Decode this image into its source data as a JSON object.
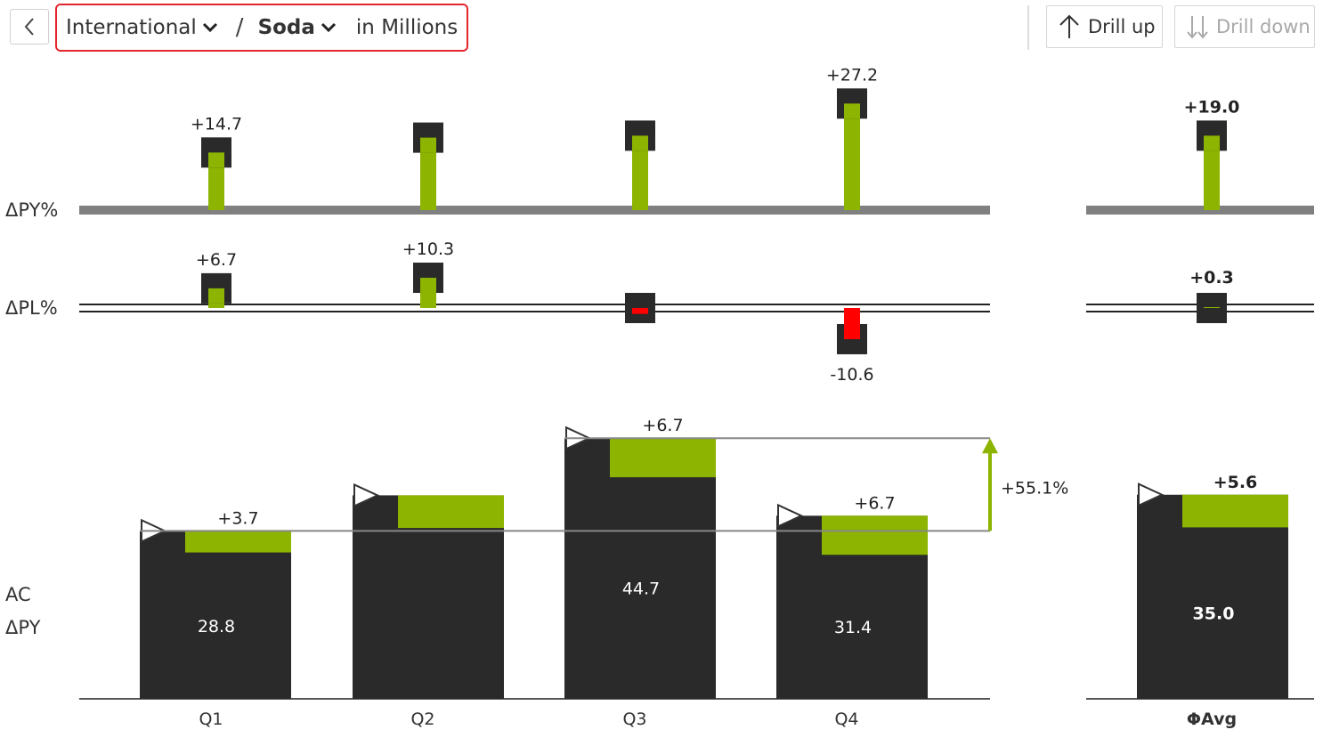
{
  "toolbar": {
    "breadcrumb_level1": "International",
    "breadcrumb_separator": "/",
    "breadcrumb_level2": "Soda",
    "unit": "in Millions",
    "drill_up": "Drill up",
    "drill_down": "Drill down",
    "icons": [
      "back-chevron-icon",
      "chevron-down-icon",
      "arrow-up-icon",
      "drill-down-arrows-icon"
    ]
  },
  "colors": {
    "actual": "#2a2a2a",
    "positive": "#8cb400",
    "negative": "#ff0000",
    "axis": "#808080",
    "highlight_border": "#e4262c"
  },
  "chart_data": {
    "type": "bar",
    "categories": [
      "Q1",
      "Q2",
      "Q3",
      "Q4"
    ],
    "total_label": "ΦAvg",
    "row_labels": {
      "dpy_pct": "ΔPY%",
      "dpl_pct": "ΔPL%",
      "ac": "AC",
      "dpy": "ΔPY"
    },
    "series": [
      {
        "name": "ΔPY%",
        "values": [
          14.7,
          18.5,
          19.0,
          27.2
        ],
        "labels": [
          "+14.7",
          "",
          "",
          "+27.2"
        ],
        "total": 19.0,
        "total_label": "+19.0"
      },
      {
        "name": "ΔPL%",
        "values": [
          6.7,
          10.3,
          -2.0,
          -10.6
        ],
        "labels": [
          "+6.7",
          "+10.3",
          "",
          "-10.6"
        ],
        "total": 0.3,
        "total_label": "+0.3"
      },
      {
        "name": "AC",
        "values": [
          28.8,
          34.9,
          44.7,
          31.4
        ],
        "labels": [
          "28.8",
          "",
          "44.7",
          "31.4"
        ],
        "total": 35.0,
        "total_label": "35.0"
      },
      {
        "name": "ΔPY",
        "values": [
          3.7,
          5.6,
          6.7,
          6.7
        ],
        "labels": [
          "+3.7",
          "",
          "+6.7",
          "+6.7"
        ],
        "total": 5.6,
        "total_label": "+5.6"
      }
    ],
    "difference_arrow": {
      "from": "Q1",
      "to": "Q3",
      "label": "+55.1%"
    }
  }
}
